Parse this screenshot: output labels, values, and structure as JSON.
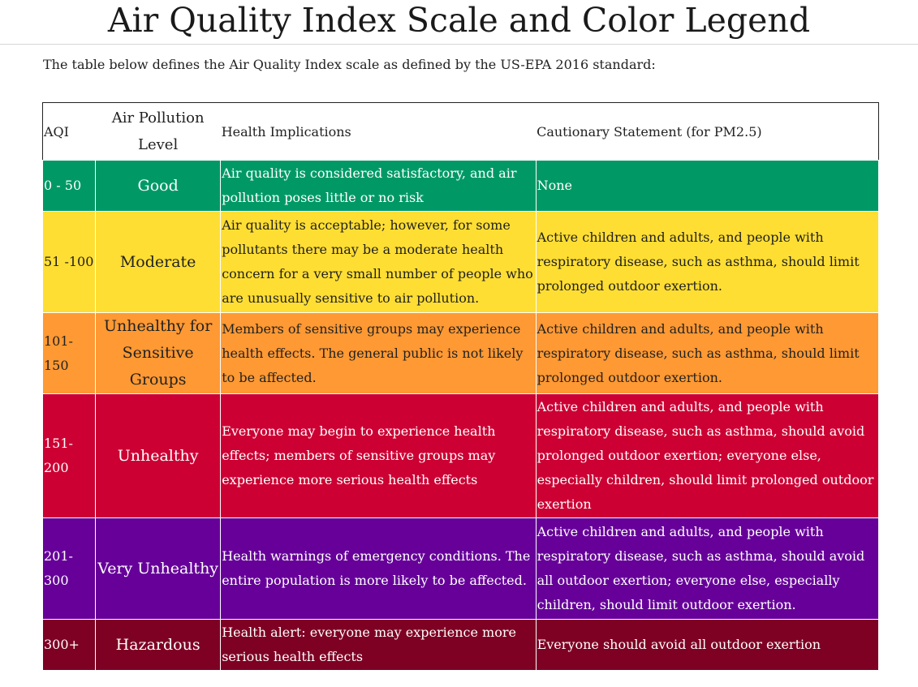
{
  "page": {
    "title": "Air Quality Index Scale and Color Legend",
    "intro": "The table below defines the Air Quality Index scale as defined by the US-EPA 2016 standard:"
  },
  "table": {
    "headers": {
      "aqi": "AQI",
      "level": "Air Pollution Level",
      "health": "Health Implications",
      "caution": "Cautionary Statement (for PM2.5)"
    },
    "rows": [
      {
        "aqi": "0 - 50",
        "level": "Good",
        "health": "Air quality is considered satisfactory, and air pollution poses little or no risk",
        "caution": "None",
        "color": "#009966"
      },
      {
        "aqi": "51 -100",
        "level": "Moderate",
        "health": "Air quality is acceptable; however, for some pollutants there may be a moderate health concern for a very small number of people who are unusually sensitive to air pollution.",
        "caution": "Active children and adults, and people with respiratory disease, such as asthma, should limit prolonged outdoor exertion.",
        "color": "#ffde33"
      },
      {
        "aqi": "101-150",
        "level": "Unhealthy for Sensitive Groups",
        "health": "Members of sensitive groups may experience health effects. The general public is not likely to be affected.",
        "caution": "Active children and adults, and people with respiratory disease, such as asthma, should limit prolonged outdoor exertion.",
        "color": "#ff9933"
      },
      {
        "aqi": "151-200",
        "level": "Unhealthy",
        "health": "Everyone may begin to experience health effects; members of sensitive groups may experience more serious health effects",
        "caution": "Active children and adults, and people with respiratory disease, such as asthma, should avoid prolonged outdoor exertion; everyone else, especially children, should limit prolonged outdoor exertion",
        "color": "#cc0033"
      },
      {
        "aqi": "201-300",
        "level": "Very Unhealthy",
        "health": "Health warnings of emergency conditions. The entire population is more likely to be affected.",
        "caution": "Active children and adults, and people with respiratory disease, such as asthma, should avoid all outdoor exertion; everyone else, especially children, should limit outdoor exertion.",
        "color": "#660099"
      },
      {
        "aqi": "300+",
        "level": "Hazardous",
        "health": "Health alert: everyone may experience more serious health effects",
        "caution": "Everyone should avoid all outdoor exertion",
        "color": "#7e0023"
      }
    ]
  }
}
